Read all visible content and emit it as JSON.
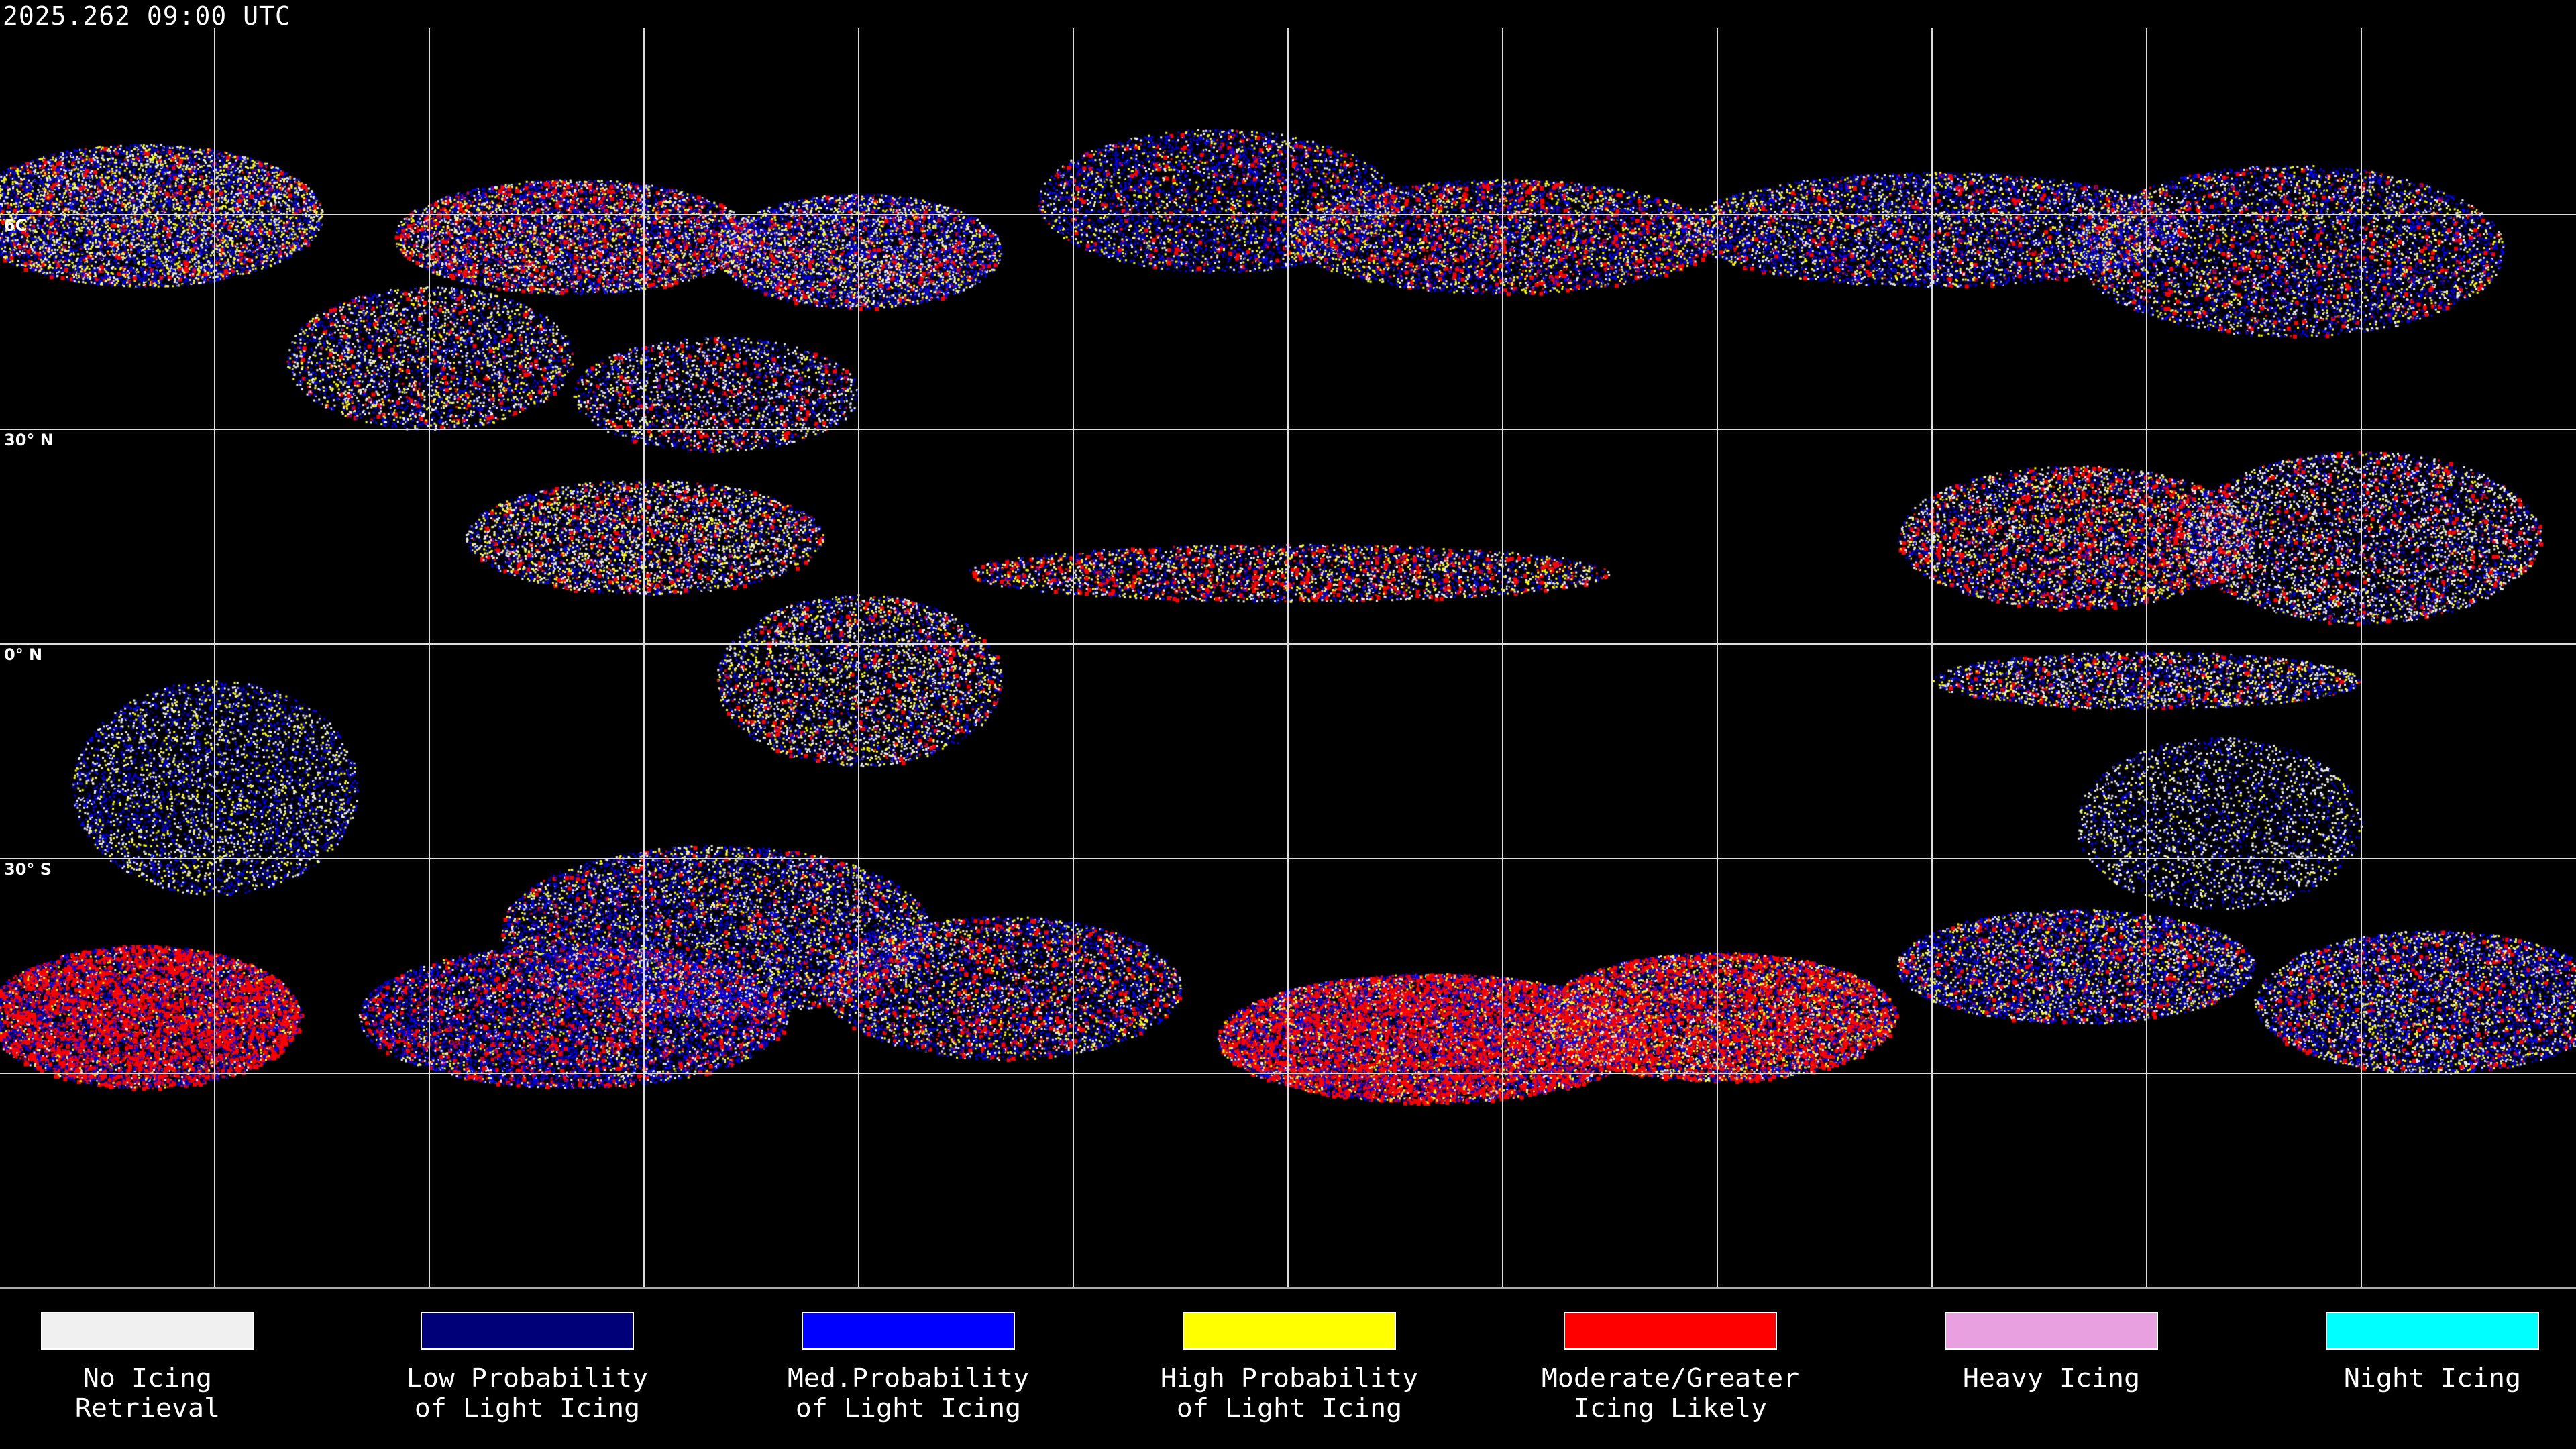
{
  "header": {
    "timestamp": "2025.262 09:00 UTC"
  },
  "map": {
    "projection": "equirectangular",
    "lon_range": [
      -180,
      180
    ],
    "lat_range": [
      -90,
      90
    ],
    "gridlines": {
      "lon_step": 30,
      "lat_step": 30
    },
    "latitude_labels": [
      "6C",
      "30° N",
      "0° N",
      "30° S"
    ]
  },
  "legend": [
    {
      "line1": "No Icing",
      "line2": "Retrieval",
      "color": "#f0f0f0"
    },
    {
      "line1": "Low Probability",
      "line2": "of Light Icing",
      "color": "#000078"
    },
    {
      "line1": "Med.Probability",
      "line2": "of Light Icing",
      "color": "#0000ff"
    },
    {
      "line1": "High Probability",
      "line2": "of Light Icing",
      "color": "#ffff00"
    },
    {
      "line1": "Moderate/Greater",
      "line2": "Icing Likely",
      "color": "#ff0000"
    },
    {
      "line1": "Heavy Icing",
      "line2": "",
      "color": "#e8a0e0"
    },
    {
      "line1": "Night Icing",
      "line2": "",
      "color": "#00ffff"
    }
  ]
}
